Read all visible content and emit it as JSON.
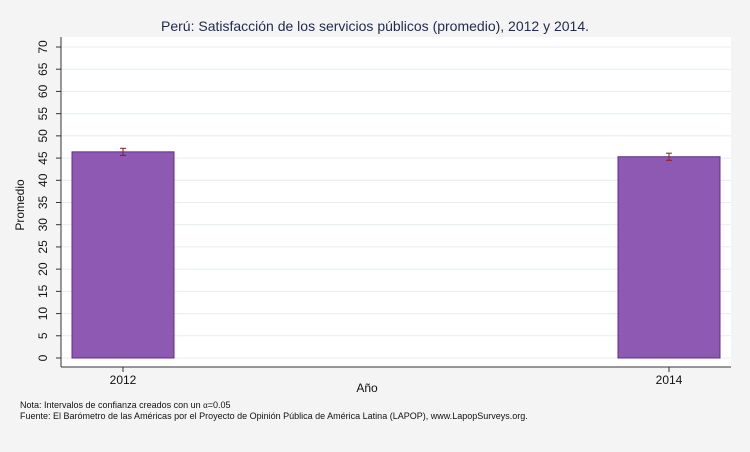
{
  "chart_data": {
    "type": "bar",
    "title": "Perú: Satisfacción de los servicios públicos (promedio), 2012 y 2014.",
    "xlabel": "Año",
    "ylabel": "Promedio",
    "categories": [
      "2012",
      "2014"
    ],
    "values": [
      46.4,
      45.3
    ],
    "error_bars": [
      [
        45.6,
        47.2
      ],
      [
        44.5,
        46.1
      ]
    ],
    "ylim": [
      0,
      70
    ],
    "yticks": [
      "0",
      "5",
      "10",
      "15",
      "20",
      "25",
      "30",
      "35",
      "40",
      "45",
      "50",
      "55",
      "60",
      "65",
      "70"
    ],
    "grid": true,
    "colors": {
      "bar": "#8e59b3",
      "bar_edge": "#5e2f84",
      "error": "#8b1e1e",
      "title": "#1f2a4d"
    }
  },
  "notes": {
    "line1_prefix": "Nota: Intervalos de confianza creados con un ",
    "alpha_symbol": "α",
    "line1_suffix": "=0.05",
    "line2": "Fuente: El Barómetro de las Américas por el Proyecto de Opinión Pública de América Latina (LAPOP), www.LapopSurveys.org."
  }
}
